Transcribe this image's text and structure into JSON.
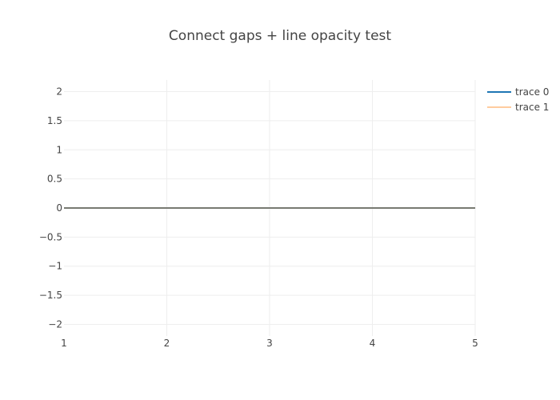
{
  "chart_data": {
    "type": "line",
    "title": "Connect gaps + line opacity test",
    "xlabel": "",
    "ylabel": "",
    "xlim": [
      1,
      5
    ],
    "ylim": [
      -2.2,
      2.2
    ],
    "x_ticks": [
      1,
      2,
      3,
      4,
      5
    ],
    "x_tick_labels": [
      "1",
      "2",
      "3",
      "4",
      "5"
    ],
    "y_ticks": [
      2,
      1.5,
      1,
      0.5,
      0,
      -0.5,
      -1,
      -1.5,
      -2
    ],
    "y_tick_labels": [
      "2",
      "1.5",
      "1",
      "0.5",
      "0",
      "−0.5",
      "−1",
      "−1.5",
      "−2"
    ],
    "grid": true,
    "legend_position": "top-right",
    "series": [
      {
        "name": "trace 0",
        "color": "#1f77b4",
        "opacity": 1.0,
        "x": [
          1,
          2,
          3,
          4,
          5
        ],
        "y": [
          0,
          0,
          0,
          0,
          0
        ]
      },
      {
        "name": "trace 1",
        "color": "#ff7f0e",
        "opacity": 0.4,
        "x": [
          1,
          2,
          3,
          4,
          5
        ],
        "y": [
          0,
          0,
          0,
          0,
          0
        ]
      }
    ]
  }
}
